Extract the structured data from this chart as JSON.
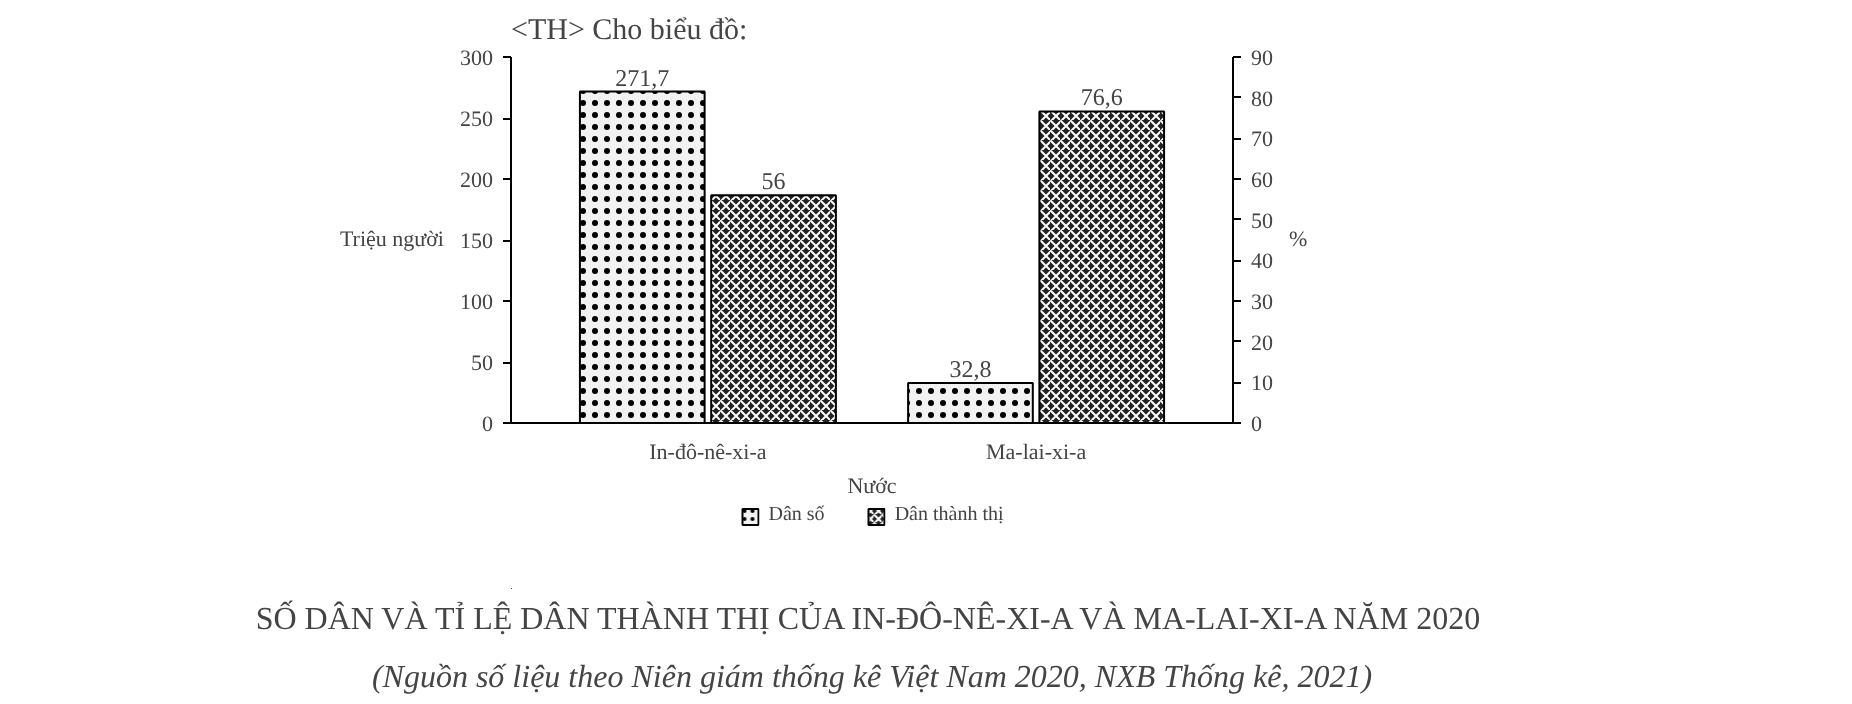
{
  "chart_data": {
    "type": "bar",
    "title": "SỐ DÂN VÀ TỈ LỆ DÂN THÀNH THỊ CỦA IN-ĐÔ-NÊ-XI-A VÀ MA-LAI-XI-A NĂM 2020",
    "subtitle": "(Nguồn số liệu theo Niên giám thống kê Việt Nam 2020, NXB Thống kê, 2021)",
    "annotations": [
      "<TH> Cho biểu đồ:"
    ],
    "ylabel": "Triệu người",
    "y2label": "%",
    "xlabel": "Nước",
    "categories": [
      "In-đô-nê-xi-a",
      "Ma-lai-xi-a"
    ],
    "series": [
      {
        "name": "Dân số",
        "color": "#f2f2f2",
        "values": [
          271.7,
          32.8
        ],
        "value_labels": [
          "271,7",
          "32,8"
        ]
      },
      {
        "name": "Dân thành thị",
        "color": "#222222",
        "values": [
          56,
          76.6
        ],
        "axis": "y2",
        "value_labels": [
          "56",
          "76,6"
        ]
      }
    ],
    "ylim": [
      0,
      300
    ],
    "yticks": [
      0,
      50,
      100,
      150,
      200,
      250,
      300
    ],
    "y2lim": [
      0,
      90
    ],
    "y2ticks": [
      0,
      10,
      20,
      30,
      40,
      50,
      60,
      70,
      80,
      90
    ],
    "legend": "bottom",
    "grid": false
  }
}
